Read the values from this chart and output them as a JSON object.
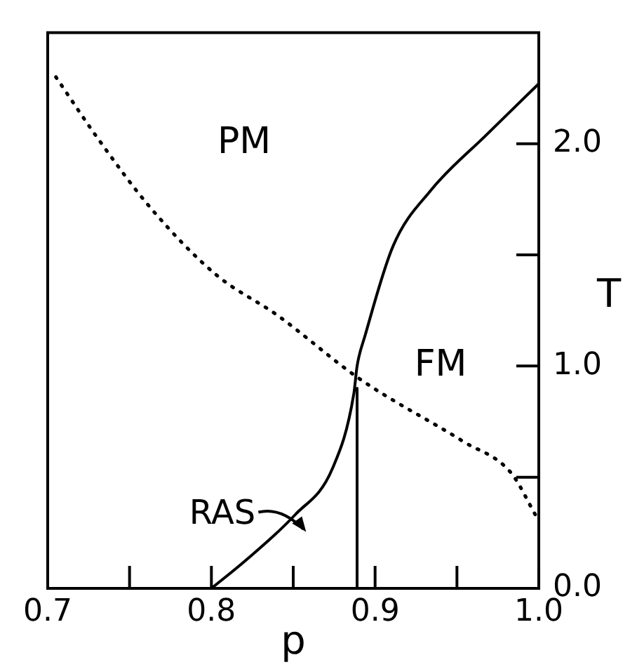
{
  "chart_data": {
    "type": "line",
    "xlabel": "p",
    "ylabel": "T",
    "xlim": [
      0.7,
      1.0
    ],
    "xticks": [
      0.7,
      {
        "value": 0.75,
        "label": null
      },
      0.8,
      {
        "value": 0.85,
        "label": null
      },
      0.9,
      {
        "value": 0.95,
        "label": null
      },
      {
        "value": 1,
        "label": "1.0"
      }
    ],
    "ylim": [
      0,
      2.5
    ],
    "yticks": [
      {
        "value": 0,
        "label": "0.0"
      },
      {
        "value": 0.5,
        "label": null
      },
      {
        "value": 1,
        "label": "1.0"
      },
      {
        "value": 1.5,
        "label": null
      },
      {
        "value": 2,
        "label": "2.0"
      }
    ],
    "grid": false,
    "legend": false,
    "marker": "none",
    "series": [
      {
        "color": "#000000",
        "line_style": "solid",
        "x": [
          0.8,
          0.82,
          0.851,
          0.874,
          0.887,
          0.889,
          0.894,
          0.911,
          0.934,
          0.968,
          1.0
        ],
        "values": [
          0,
          0.12,
          0.33,
          0.54,
          0.875,
          1.0,
          1.14,
          1.54,
          1.79,
          2.04,
          2.27
        ]
      },
      {
        "color": "#000000",
        "line_style": "solid",
        "x": [
          0.889,
          0.889
        ],
        "values": [
          0,
          0.9
        ]
      },
      {
        "color": "#000000",
        "line_style": "dotted",
        "x": [
          0.705,
          0.731,
          0.763,
          0.803,
          0.84,
          0.891,
          0.954,
          0.983,
          0.998
        ],
        "values": [
          2.3,
          2.02,
          1.71,
          1.41,
          1.23,
          0.94,
          0.66,
          0.52,
          0.33
        ]
      }
    ],
    "annotations": [
      "PM",
      "FM",
      {
        "text": "RAS",
        "x": 0.851,
        "y": 0.33
      }
    ]
  }
}
